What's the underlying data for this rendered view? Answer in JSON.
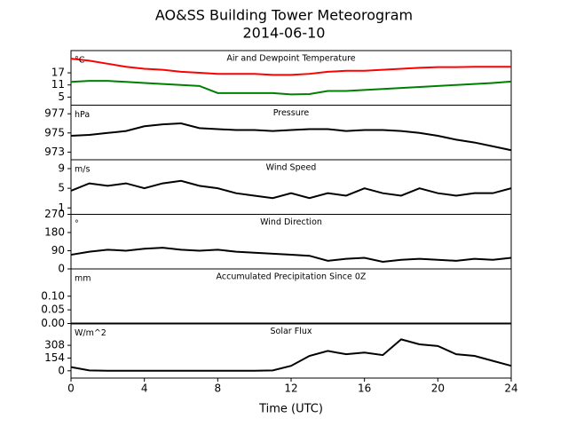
{
  "title": "AO&SS Building Tower Meteorogram",
  "date": "2014-06-10",
  "chart_data": [
    {
      "type": "line",
      "title": "Air and Dewpoint Temperature",
      "unit": "°C",
      "xlim": [
        0,
        24
      ],
      "ylim": [
        1,
        28
      ],
      "yticks": [
        5,
        11,
        17
      ],
      "x": [
        0,
        1,
        2,
        3,
        4,
        5,
        6,
        7,
        8,
        9,
        10,
        11,
        12,
        13,
        14,
        15,
        16,
        17,
        18,
        19,
        20,
        21,
        22,
        23,
        24
      ],
      "series": [
        {
          "name": "Air Temperature",
          "color": "#ff0000",
          "values": [
            24,
            23,
            21.5,
            20,
            19,
            18.5,
            17.5,
            17,
            16.5,
            16.5,
            16.5,
            16,
            16,
            16.5,
            17.5,
            18,
            18,
            18.5,
            19,
            19.5,
            19.8,
            19.8,
            20,
            20,
            20
          ]
        },
        {
          "name": "Dewpoint Temperature",
          "color": "#008000",
          "values": [
            12.5,
            13,
            13,
            12.5,
            12,
            11.5,
            11,
            10.5,
            7,
            7,
            7,
            7,
            6.3,
            6.5,
            8,
            8,
            8.5,
            9,
            9.5,
            10,
            10.5,
            11,
            11.5,
            12,
            12.7
          ]
        }
      ]
    },
    {
      "type": "line",
      "title": "Pressure",
      "unit": "hPa",
      "xlim": [
        0,
        24
      ],
      "ylim": [
        972.2,
        977.9
      ],
      "yticks": [
        973,
        975,
        977
      ],
      "x": [
        0,
        1,
        2,
        3,
        4,
        5,
        6,
        7,
        8,
        9,
        10,
        11,
        12,
        13,
        14,
        15,
        16,
        17,
        18,
        19,
        20,
        21,
        22,
        23,
        24
      ],
      "series": [
        {
          "name": "Pressure",
          "color": "#000000",
          "values": [
            974.7,
            974.8,
            975.0,
            975.2,
            975.7,
            975.9,
            976.0,
            975.5,
            975.4,
            975.3,
            975.3,
            975.2,
            975.3,
            975.4,
            975.4,
            975.2,
            975.3,
            975.3,
            975.2,
            975.0,
            974.7,
            974.3,
            974.0,
            973.6,
            973.2
          ]
        }
      ]
    },
    {
      "type": "line",
      "title": "Wind Speed",
      "unit": "m/s",
      "xlim": [
        0,
        24
      ],
      "ylim": [
        -0.3,
        10.8
      ],
      "yticks": [
        1,
        5,
        9
      ],
      "x": [
        0,
        1,
        2,
        3,
        4,
        5,
        6,
        7,
        8,
        9,
        10,
        11,
        12,
        13,
        14,
        15,
        16,
        17,
        18,
        19,
        20,
        21,
        22,
        23,
        24
      ],
      "series": [
        {
          "name": "Wind Speed",
          "color": "#000000",
          "values": [
            4.5,
            6,
            5.5,
            6,
            5,
            6,
            6.5,
            5.5,
            5,
            4,
            3.5,
            3,
            4,
            3,
            4,
            3.5,
            5,
            4,
            3.5,
            5,
            4,
            3.5,
            4,
            4,
            5
          ]
        }
      ]
    },
    {
      "type": "line",
      "title": "Wind Direction",
      "unit": "°",
      "xlim": [
        0,
        24
      ],
      "ylim": [
        0,
        270
      ],
      "yticks": [
        0,
        90,
        180,
        270
      ],
      "x": [
        0,
        1,
        2,
        3,
        4,
        5,
        6,
        7,
        8,
        9,
        10,
        11,
        12,
        13,
        14,
        15,
        16,
        17,
        18,
        19,
        20,
        21,
        22,
        23,
        24
      ],
      "series": [
        {
          "name": "Wind Direction",
          "color": "#000000",
          "values": [
            70,
            85,
            95,
            90,
            100,
            105,
            95,
            90,
            95,
            85,
            80,
            75,
            70,
            65,
            40,
            50,
            55,
            35,
            45,
            50,
            45,
            40,
            50,
            45,
            55
          ]
        }
      ]
    },
    {
      "type": "line",
      "title": "Accumulated Precipitation Since 0Z",
      "unit": "mm",
      "xlim": [
        0,
        24
      ],
      "ylim": [
        0,
        0.2
      ],
      "yticks": [
        {
          "value": 0,
          "label": "0.00"
        },
        {
          "value": 0.05,
          "label": "0.05"
        },
        {
          "value": 0.1,
          "label": "0.10"
        }
      ],
      "x": [
        0,
        1,
        2,
        3,
        4,
        5,
        6,
        7,
        8,
        9,
        10,
        11,
        12,
        13,
        14,
        15,
        16,
        17,
        18,
        19,
        20,
        21,
        22,
        23,
        24
      ],
      "series": [
        {
          "name": "Precipitation",
          "color": "#000000",
          "values": [
            0,
            0,
            0,
            0,
            0,
            0,
            0,
            0,
            0,
            0,
            0,
            0,
            0,
            0,
            0,
            0,
            0,
            0,
            0,
            0,
            0,
            0,
            0,
            0,
            0
          ]
        }
      ]
    },
    {
      "type": "line",
      "title": "Solar Flux",
      "unit": "W/m^2",
      "xlim": [
        0,
        24
      ],
      "ylim": [
        -88,
        572
      ],
      "yticks": [
        0,
        154,
        308
      ],
      "xticks": [
        0,
        4,
        8,
        12,
        16,
        20,
        24
      ],
      "xlabel": "Time (UTC)",
      "x": [
        0,
        1,
        2,
        3,
        4,
        5,
        6,
        7,
        8,
        9,
        10,
        11,
        12,
        13,
        14,
        15,
        16,
        17,
        18,
        19,
        20,
        21,
        22,
        23,
        24
      ],
      "series": [
        {
          "name": "Solar Flux",
          "color": "#000000",
          "values": [
            45,
            5,
            0,
            0,
            0,
            0,
            0,
            0,
            0,
            0,
            0,
            5,
            60,
            180,
            240,
            200,
            220,
            190,
            380,
            320,
            300,
            200,
            180,
            120,
            60
          ]
        }
      ]
    }
  ]
}
